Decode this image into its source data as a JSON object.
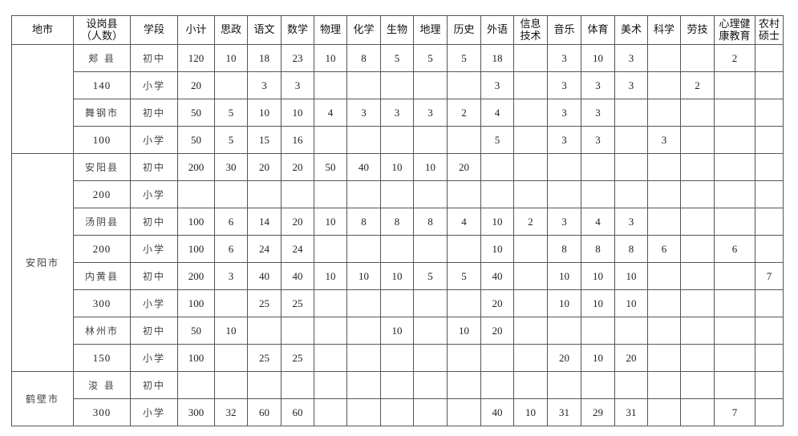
{
  "headers": [
    "地市",
    "设岗县（人数）",
    "学段",
    "小计",
    "思政",
    "语文",
    "数学",
    "物理",
    "化学",
    "生物",
    "地理",
    "历史",
    "外语",
    "信息技术",
    "音乐",
    "体育",
    "美术",
    "科学",
    "劳技",
    "心理健康教育",
    "农村硕士"
  ],
  "groups": [
    {
      "city": "",
      "rows": [
        {
          "county": "郏 县",
          "stage": "初中",
          "values": [
            "120",
            "10",
            "18",
            "23",
            "10",
            "8",
            "5",
            "5",
            "5",
            "18",
            "",
            "3",
            "10",
            "3",
            "",
            "",
            "2",
            ""
          ]
        },
        {
          "county": "140",
          "stage": "小学",
          "values": [
            "20",
            "",
            "3",
            "3",
            "",
            "",
            "",
            "",
            "",
            "3",
            "",
            "3",
            "3",
            "3",
            "",
            "2",
            "",
            ""
          ]
        },
        {
          "county": "舞钢市",
          "stage": "初中",
          "values": [
            "50",
            "5",
            "10",
            "10",
            "4",
            "3",
            "3",
            "3",
            "2",
            "4",
            "",
            "3",
            "3",
            "",
            "",
            "",
            "",
            ""
          ]
        },
        {
          "county": "100",
          "stage": "小学",
          "values": [
            "50",
            "5",
            "15",
            "16",
            "",
            "",
            "",
            "",
            "",
            "5",
            "",
            "3",
            "3",
            "",
            "3",
            "",
            "",
            ""
          ]
        }
      ]
    },
    {
      "city": "安阳市",
      "rows": [
        {
          "county": "安阳县",
          "stage": "初中",
          "values": [
            "200",
            "30",
            "20",
            "20",
            "50",
            "40",
            "10",
            "10",
            "20",
            "",
            "",
            "",
            "",
            "",
            "",
            "",
            "",
            ""
          ]
        },
        {
          "county": "200",
          "stage": "小学",
          "values": [
            "",
            "",
            "",
            "",
            "",
            "",
            "",
            "",
            "",
            "",
            "",
            "",
            "",
            "",
            "",
            "",
            "",
            ""
          ]
        },
        {
          "county": "汤阴县",
          "stage": "初中",
          "values": [
            "100",
            "6",
            "14",
            "20",
            "10",
            "8",
            "8",
            "8",
            "4",
            "10",
            "2",
            "3",
            "4",
            "3",
            "",
            "",
            "",
            ""
          ]
        },
        {
          "county": "200",
          "stage": "小学",
          "values": [
            "100",
            "6",
            "24",
            "24",
            "",
            "",
            "",
            "",
            "",
            "10",
            "",
            "8",
            "8",
            "8",
            "6",
            "",
            "6",
            ""
          ]
        },
        {
          "county": "内黄县",
          "stage": "初中",
          "values": [
            "200",
            "3",
            "40",
            "40",
            "10",
            "10",
            "10",
            "5",
            "5",
            "40",
            "",
            "10",
            "10",
            "10",
            "",
            "",
            "",
            "7"
          ]
        },
        {
          "county": "300",
          "stage": "小学",
          "values": [
            "100",
            "",
            "25",
            "25",
            "",
            "",
            "",
            "",
            "",
            "20",
            "",
            "10",
            "10",
            "10",
            "",
            "",
            "",
            ""
          ]
        },
        {
          "county": "林州市",
          "stage": "初中",
          "values": [
            "50",
            "10",
            "",
            "",
            "",
            "",
            "10",
            "",
            "10",
            "20",
            "",
            "",
            "",
            "",
            "",
            "",
            "",
            ""
          ]
        },
        {
          "county": "150",
          "stage": "小学",
          "values": [
            "100",
            "",
            "25",
            "25",
            "",
            "",
            "",
            "",
            "",
            "",
            "",
            "20",
            "10",
            "20",
            "",
            "",
            "",
            ""
          ]
        }
      ]
    },
    {
      "city": "鹤壁市",
      "rows": [
        {
          "county": "浚 县",
          "stage": "初中",
          "values": [
            "",
            "",
            "",
            "",
            "",
            "",
            "",
            "",
            "",
            "",
            "",
            "",
            "",
            "",
            "",
            "",
            "",
            ""
          ]
        },
        {
          "county": "300",
          "stage": "小学",
          "values": [
            "300",
            "32",
            "60",
            "60",
            "",
            "",
            "",
            "",
            "",
            "40",
            "10",
            "31",
            "29",
            "31",
            "",
            "",
            "7",
            ""
          ]
        }
      ]
    }
  ]
}
